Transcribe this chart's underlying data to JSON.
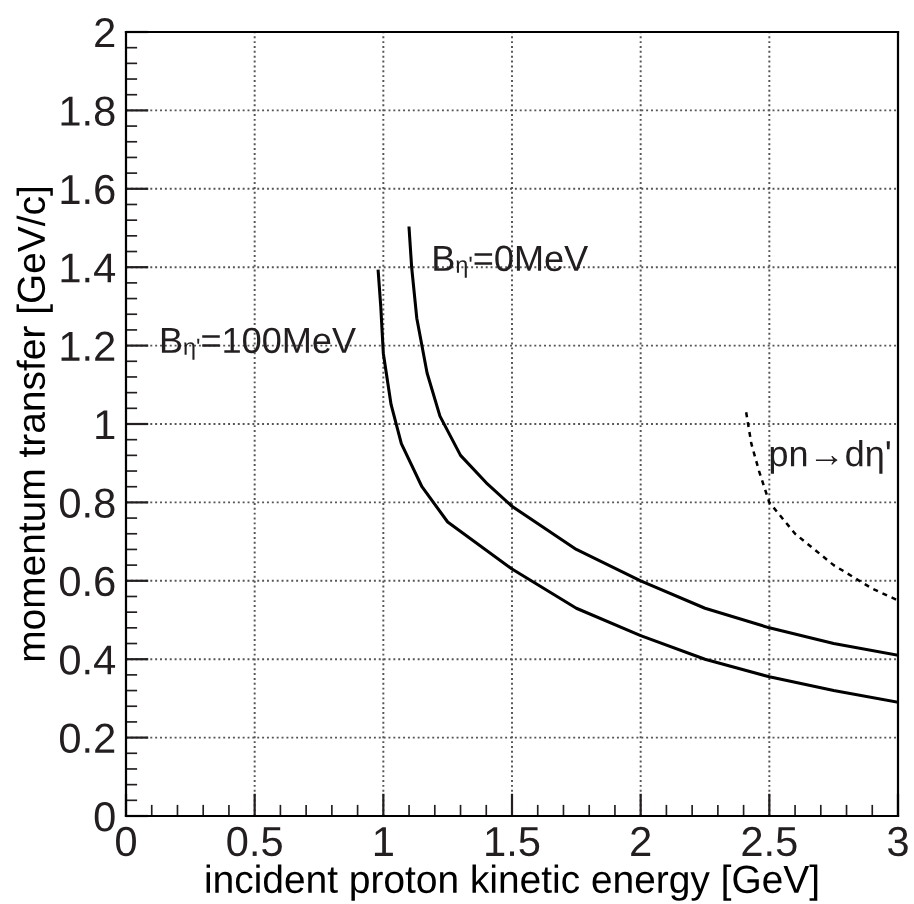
{
  "chart_data": {
    "type": "line",
    "xlabel": "incident proton kinetic energy [GeV]",
    "ylabel": "momentum transfer [GeV/c]",
    "xlim": [
      0,
      3
    ],
    "ylim": [
      0,
      2
    ],
    "xticks": [
      0,
      0.5,
      1,
      1.5,
      2,
      2.5,
      3
    ],
    "yticks": [
      0,
      0.2,
      0.4,
      0.6,
      0.8,
      1,
      1.2,
      1.4,
      1.6,
      1.8,
      2
    ],
    "grid": true,
    "legend": false,
    "marker": "none",
    "series": [
      {
        "name": "B$_{η'}$=100MeV",
        "color": "#000000",
        "line_style": "solid",
        "x": [
          0.98,
          0.99,
          1.0,
          1.03,
          1.07,
          1.15,
          1.25,
          1.5,
          1.75,
          2,
          2.25,
          2.5,
          2.75,
          3
        ],
        "values": [
          1.39,
          1.3,
          1.18,
          1.05,
          0.95,
          0.84,
          0.75,
          0.63,
          0.53,
          0.46,
          0.4,
          0.355,
          0.32,
          0.29
        ]
      },
      {
        "name": "B$_{η'}$=0MeV",
        "color": "#000000",
        "line_style": "solid",
        "x": [
          1.1,
          1.11,
          1.13,
          1.17,
          1.22,
          1.3,
          1.4,
          1.5,
          1.75,
          2,
          2.25,
          2.5,
          2.75,
          3
        ],
        "values": [
          1.5,
          1.4,
          1.27,
          1.13,
          1.02,
          0.92,
          0.85,
          0.79,
          0.68,
          0.6,
          0.53,
          0.48,
          0.44,
          0.41
        ]
      },
      {
        "name": "pn→dη'",
        "color": "#000000",
        "line_style": "dashed",
        "x": [
          2.41,
          2.43,
          2.46,
          2.5,
          2.6,
          2.75,
          2.9,
          3
        ],
        "values": [
          1.03,
          0.95,
          0.88,
          0.8,
          0.72,
          0.64,
          0.58,
          0.55
        ]
      }
    ]
  }
}
